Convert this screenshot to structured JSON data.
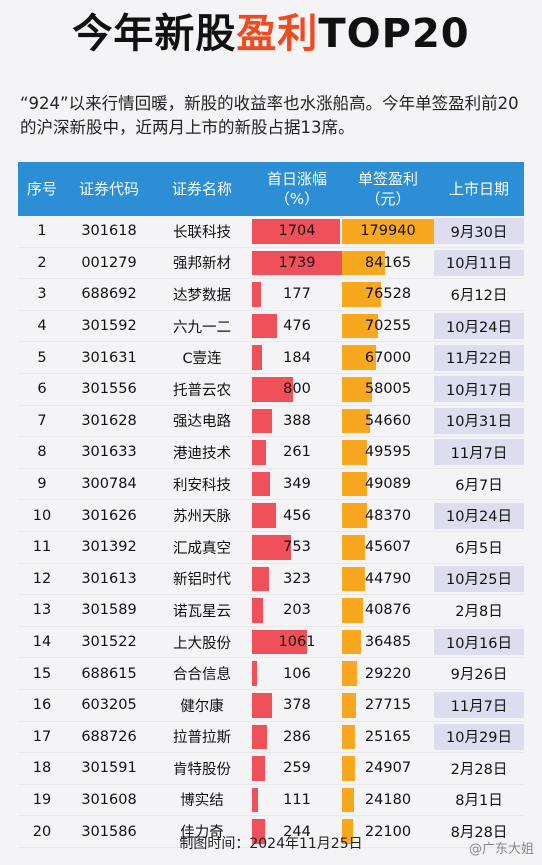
{
  "title": {
    "part1": "今年新股",
    "highlight": "盈利",
    "part2": "TOP20"
  },
  "intro": "“924”以来行情回暖，新股的收益率也水涨船高。今年单签盈利前20的沪深新股中，近两月上市的新股占据13席。",
  "headers": {
    "seq": "序号",
    "code": "证券代码",
    "name": "证券名称",
    "rise_line1": "首日涨幅",
    "rise_line2": "（%）",
    "profit_line1": "单签盈利",
    "profit_line2": "（元）",
    "date": "上市日期"
  },
  "colors": {
    "header": "#2c8fd6",
    "rise_bar": "#f0505a",
    "profit_bar": "#f7a81f",
    "recent_date_bg": "#dedcef",
    "title_highlight": "#f04a1f"
  },
  "rows": [
    {
      "seq": "1",
      "code": "301618",
      "name": "长联科技",
      "rise": "1704",
      "profit": "179940",
      "date": "9月30日",
      "recent": true
    },
    {
      "seq": "2",
      "code": "001279",
      "name": "强邦新材",
      "rise": "1739",
      "profit": "84165",
      "date": "10月11日",
      "recent": true
    },
    {
      "seq": "3",
      "code": "688692",
      "name": "达梦数据",
      "rise": "177",
      "profit": "76528",
      "date": "6月12日",
      "recent": false
    },
    {
      "seq": "4",
      "code": "301592",
      "name": "六九一二",
      "rise": "476",
      "profit": "70255",
      "date": "10月24日",
      "recent": true
    },
    {
      "seq": "5",
      "code": "301631",
      "name": "C壹连",
      "rise": "184",
      "profit": "67000",
      "date": "11月22日",
      "recent": true
    },
    {
      "seq": "6",
      "code": "301556",
      "name": "托普云农",
      "rise": "800",
      "profit": "58005",
      "date": "10月17日",
      "recent": true
    },
    {
      "seq": "7",
      "code": "301628",
      "name": "强达电路",
      "rise": "388",
      "profit": "54660",
      "date": "10月31日",
      "recent": true
    },
    {
      "seq": "8",
      "code": "301633",
      "name": "港迪技术",
      "rise": "261",
      "profit": "49595",
      "date": "11月7日",
      "recent": true
    },
    {
      "seq": "9",
      "code": "300784",
      "name": "利安科技",
      "rise": "349",
      "profit": "49089",
      "date": "6月7日",
      "recent": false
    },
    {
      "seq": "10",
      "code": "301626",
      "name": "苏州天脉",
      "rise": "456",
      "profit": "48370",
      "date": "10月24日",
      "recent": true
    },
    {
      "seq": "11",
      "code": "301392",
      "name": "汇成真空",
      "rise": "753",
      "profit": "45607",
      "date": "6月5日",
      "recent": false
    },
    {
      "seq": "12",
      "code": "301613",
      "name": "新铝时代",
      "rise": "323",
      "profit": "44790",
      "date": "10月25日",
      "recent": true
    },
    {
      "seq": "13",
      "code": "301589",
      "name": "诺瓦星云",
      "rise": "203",
      "profit": "40876",
      "date": "2月8日",
      "recent": false
    },
    {
      "seq": "14",
      "code": "301522",
      "name": "上大股份",
      "rise": "1061",
      "profit": "36485",
      "date": "10月16日",
      "recent": true
    },
    {
      "seq": "15",
      "code": "688615",
      "name": "合合信息",
      "rise": "106",
      "profit": "29220",
      "date": "9月26日",
      "recent": false
    },
    {
      "seq": "16",
      "code": "603205",
      "name": "健尔康",
      "rise": "378",
      "profit": "27715",
      "date": "11月7日",
      "recent": true
    },
    {
      "seq": "17",
      "code": "688726",
      "name": "拉普拉斯",
      "rise": "286",
      "profit": "25165",
      "date": "10月29日",
      "recent": true
    },
    {
      "seq": "18",
      "code": "301591",
      "name": "肯特股份",
      "rise": "259",
      "profit": "24907",
      "date": "2月28日",
      "recent": false
    },
    {
      "seq": "19",
      "code": "301608",
      "name": "博实结",
      "rise": "111",
      "profit": "24180",
      "date": "8月1日",
      "recent": false
    },
    {
      "seq": "20",
      "code": "301586",
      "name": "佳力奇",
      "rise": "244",
      "profit": "22100",
      "date": "8月28日",
      "recent": false
    }
  ],
  "footer": "制图时间：2024年11月25日",
  "watermark": "@广东大姐"
}
